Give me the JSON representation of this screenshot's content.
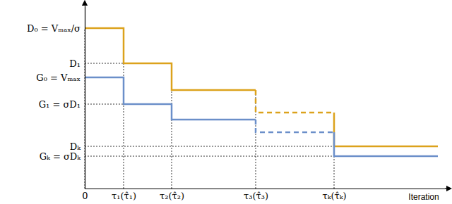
{
  "chart_data": {
    "type": "line",
    "x_label": "Iteration",
    "xlim": [
      0,
      510
    ],
    "ylim": [
      0,
      260
    ],
    "xticks": [
      {
        "value": 0,
        "label": "0"
      },
      {
        "value": 55,
        "label": "τ₁(τ̂₁)"
      },
      {
        "value": 123,
        "label": "τ₂(τ̂₂)"
      },
      {
        "value": 242,
        "label": "τ₃(τ̂₃)"
      },
      {
        "value": 353,
        "label": "τₖ(τ̂ₖ)"
      }
    ],
    "yticks": [
      {
        "value": 228,
        "label": "D₀ = Vₘₐₓ/σ"
      },
      {
        "value": 178,
        "label": "D₁"
      },
      {
        "value": 158,
        "label": "G₀ = Vₘₐₓ"
      },
      {
        "value": 120,
        "label": "G₁ = σD₁"
      },
      {
        "value": 60,
        "label": "Dₖ"
      },
      {
        "value": 46,
        "label": "Gₖ = σDₖ"
      }
    ],
    "series": [
      {
        "color": "#dca21c",
        "line_style": "solid",
        "x": [
          0,
          55,
          55,
          123,
          123,
          242
        ],
        "values": [
          228,
          228,
          178,
          178,
          140,
          140
        ]
      },
      {
        "color": "#dca21c",
        "line_style": "dashed",
        "x": [
          242,
          242,
          353
        ],
        "values": [
          140,
          108,
          108
        ]
      },
      {
        "color": "#dca21c",
        "line_style": "solid",
        "x": [
          353,
          353,
          500
        ],
        "values": [
          108,
          60,
          60
        ]
      },
      {
        "color": "#6b8fc9",
        "line_style": "solid",
        "x": [
          0,
          55,
          55,
          123,
          123,
          242
        ],
        "values": [
          158,
          158,
          120,
          120,
          98,
          98
        ]
      },
      {
        "color": "#6b8fc9",
        "line_style": "dashed",
        "x": [
          242,
          242,
          353
        ],
        "values": [
          98,
          80,
          80
        ]
      },
      {
        "color": "#6b8fc9",
        "line_style": "solid",
        "x": [
          353,
          353,
          500
        ],
        "values": [
          80,
          46,
          46
        ]
      }
    ]
  }
}
